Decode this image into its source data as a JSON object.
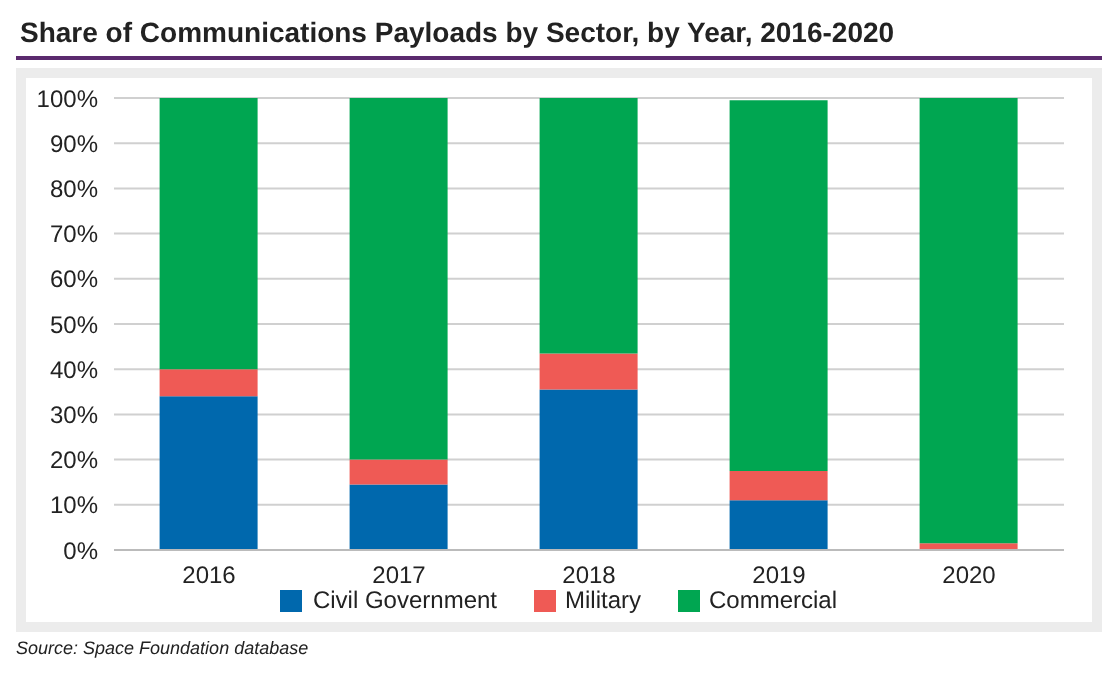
{
  "chart_data": {
    "type": "bar",
    "title": "Share of Communications Payloads by Sector, by Year, 2016-2020",
    "categories": [
      "2016",
      "2017",
      "2018",
      "2019",
      "2020"
    ],
    "series": [
      {
        "name": "Civil Government",
        "color": "#0068ad",
        "values": [
          34,
          14.5,
          35.5,
          11,
          0
        ]
      },
      {
        "name": "Military",
        "color": "#ef5a55",
        "values": [
          6,
          5.5,
          8,
          6.5,
          1.5
        ]
      },
      {
        "name": "Commercial",
        "color": "#00a651",
        "values": [
          60,
          80,
          56.5,
          82,
          98.5
        ]
      }
    ],
    "stacked": true,
    "ylim": [
      0,
      100
    ],
    "yticks": [
      {
        "value": 0,
        "label": "0%"
      },
      {
        "value": 10,
        "label": "10%"
      },
      {
        "value": 20,
        "label": "20%"
      },
      {
        "value": 30,
        "label": "30%"
      },
      {
        "value": 40,
        "label": "40%"
      },
      {
        "value": 50,
        "label": "50%"
      },
      {
        "value": 60,
        "label": "60%"
      },
      {
        "value": 70,
        "label": "70%"
      },
      {
        "value": 80,
        "label": "80%"
      },
      {
        "value": 90,
        "label": "90%"
      },
      {
        "value": 100,
        "label": "100%"
      }
    ],
    "grid": "y",
    "legend": "bottom",
    "annotations": [
      "Source: Space Foundation database"
    ]
  }
}
